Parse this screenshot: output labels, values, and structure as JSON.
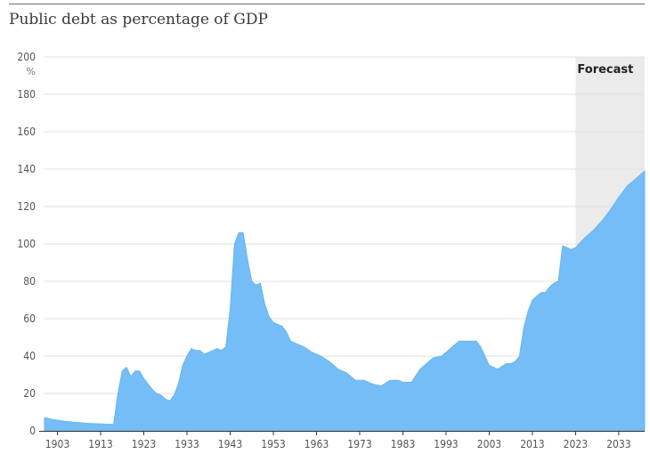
{
  "chart_data": {
    "type": "area",
    "title": "Public debt as percentage of GDP",
    "ylabel": "%",
    "xlabel": "",
    "ylim": [
      0,
      200
    ],
    "xlim": [
      1900,
      2039
    ],
    "y_ticks": [
      0,
      20,
      40,
      60,
      80,
      100,
      120,
      140,
      160,
      180,
      200
    ],
    "x_ticks": [
      1903,
      1913,
      1923,
      1933,
      1943,
      1953,
      1963,
      1973,
      1983,
      1993,
      2003,
      2013,
      2023,
      2033
    ],
    "grid": true,
    "fill_color": "#74bdf6",
    "forecast": {
      "label": "Forecast",
      "start": 2023,
      "end": 2039,
      "shade_color": "#ebebeb"
    },
    "series": [
      {
        "x": [
          1900,
          1902,
          1905,
          1910,
          1915,
          1916,
          1917,
          1918,
          1919,
          1920,
          1921,
          1922,
          1923,
          1924,
          1925,
          1926,
          1927,
          1928,
          1929,
          1930,
          1931,
          1932,
          1933,
          1934,
          1935,
          1936,
          1937,
          1938,
          1939,
          1940,
          1941,
          1942,
          1943,
          1944,
          1945,
          1946,
          1947,
          1948,
          1949,
          1950,
          1951,
          1952,
          1953,
          1954,
          1955,
          1956,
          1957,
          1958,
          1959,
          1960,
          1962,
          1964,
          1966,
          1968,
          1970,
          1972,
          1974,
          1976,
          1978,
          1980,
          1982,
          1983,
          1985,
          1987,
          1989,
          1990,
          1992,
          1994,
          1996,
          1998,
          2000,
          2001,
          2003,
          2005,
          2007,
          2008,
          2009,
          2010,
          2011,
          2012,
          2013,
          2014,
          2015,
          2016,
          2017,
          2018,
          2019,
          2020,
          2021,
          2022,
          2023,
          2025,
          2027,
          2029,
          2031,
          2033,
          2035,
          2037,
          2039
        ],
        "values": [
          7,
          6,
          5,
          4,
          3.5,
          3.5,
          20,
          32,
          34,
          29,
          32,
          32,
          28,
          25,
          22,
          20,
          19,
          17,
          16,
          19,
          25,
          35,
          40,
          44,
          43,
          43,
          41,
          42,
          43,
          44,
          43,
          45,
          65,
          100,
          106,
          106,
          92,
          80,
          78,
          79,
          68,
          61,
          58,
          57,
          56,
          53,
          48,
          47,
          46,
          45,
          42,
          40,
          37,
          33,
          31,
          27,
          27,
          25,
          24,
          27,
          27,
          26,
          26,
          33,
          37,
          39,
          40,
          44,
          48,
          48,
          48,
          45,
          35,
          33,
          36,
          36,
          37,
          40,
          55,
          64,
          70,
          72,
          74,
          74,
          77,
          79,
          80,
          99,
          98,
          97,
          98,
          103,
          107,
          112,
          118,
          125,
          131,
          135,
          139
        ]
      }
    ]
  }
}
